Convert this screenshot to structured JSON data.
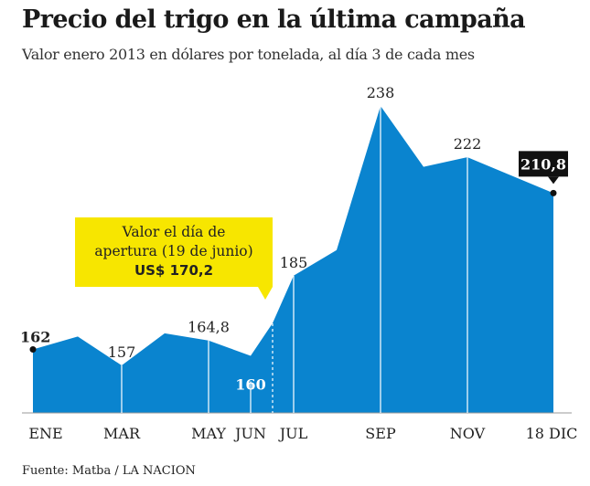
{
  "chart_data": {
    "type": "area",
    "title": "Precio del trigo en la última campaña",
    "subtitle": "Valor enero 2013 en dólares por tonelada, al día 3 de cada mes",
    "source": "Fuente: Matba / LA NACION",
    "points": [
      {
        "x": "ENE",
        "y": 162,
        "label": "162"
      },
      {
        "x": "FEB",
        "y": 166
      },
      {
        "x": "MAR",
        "y": 157,
        "label": "157"
      },
      {
        "x": "ABR",
        "y": 167
      },
      {
        "x": "MAY",
        "y": 164.8,
        "label": "164,8"
      },
      {
        "x": "JUN",
        "y": 160,
        "label": "160"
      },
      {
        "x": "19 JUN",
        "y": 170.2
      },
      {
        "x": "JUL",
        "y": 185,
        "label": "185"
      },
      {
        "x": "AGO",
        "y": 193
      },
      {
        "x": "SEP",
        "y": 238,
        "label": "238"
      },
      {
        "x": "OCT",
        "y": 219
      },
      {
        "x": "NOV",
        "y": 222,
        "label": "222"
      },
      {
        "x": "18 DIC",
        "y": 210.8,
        "label": "210,8"
      }
    ],
    "x_ticks": [
      "ENE",
      "MAR",
      "MAY",
      "JUN",
      "JUL",
      "SEP",
      "NOV",
      "18 DIC"
    ],
    "ylim": [
      130,
      245
    ],
    "grid": false,
    "color": "#0a84cf",
    "callout": {
      "line1": "Valor el día de",
      "line2": "apertura (19 de junio)",
      "value": "US$ 170,2",
      "color": "#f7e600"
    }
  }
}
